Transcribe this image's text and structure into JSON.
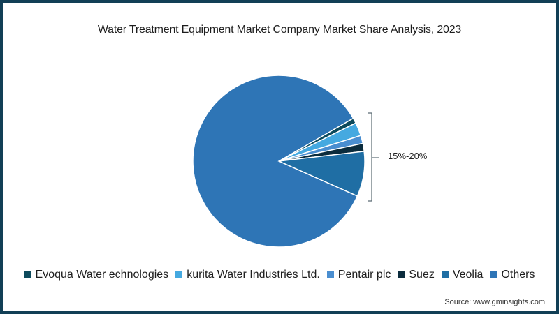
{
  "chart_data": {
    "type": "pie",
    "title": "Water Treatment Equipment Market Company Market Share Analysis, 2023",
    "categories": [
      "Evoqua Water echnologies",
      "kurita Water Industries Ltd.",
      "Pentair plc",
      "Suez",
      "Veolia",
      "Others"
    ],
    "values": [
      1,
      2.5,
      1.5,
      1.5,
      8.5,
      85
    ],
    "colors": [
      "#0d4a5c",
      "#45a9e0",
      "#4a8ed0",
      "#0b2c3d",
      "#1f6ea4",
      "#2e75b6"
    ],
    "annotation": "15%-20%",
    "annotation_target": "Evoqua, Kurita, Pentair, Suez, Veolia combined",
    "legend_position": "bottom",
    "source": "Source: www.gminsights.com"
  },
  "title": "Water Treatment Equipment Market Company Market Share Analysis, 2023",
  "annotation": "15%-20%",
  "legend": [
    {
      "label": "Evoqua Water echnologies",
      "color": "#0d4a5c"
    },
    {
      "label": "kurita Water Industries Ltd.",
      "color": "#45a9e0"
    },
    {
      "label": "Pentair plc",
      "color": "#4a8ed0"
    },
    {
      "label": "Suez",
      "color": "#0b2c3d"
    },
    {
      "label": "Veolia",
      "color": "#1f6ea4"
    },
    {
      "label": "Others",
      "color": "#2e75b6"
    }
  ],
  "source": "Source: www.gminsights.com",
  "colors": {
    "frame": "#123f56"
  }
}
